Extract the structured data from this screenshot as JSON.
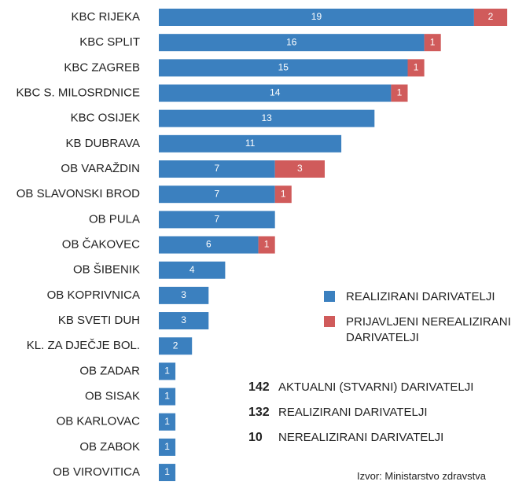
{
  "chart_data": {
    "type": "stacked-bar-horizontal",
    "categories": [
      "KBC RIJEKA",
      "KBC SPLIT",
      "KBC ZAGREB",
      "KBC S. MILOSRDNICE",
      "KBC OSIJEK",
      "KB DUBRAVA",
      "OB VARAŽDIN",
      "OB SLAVONSKI BROD",
      "OB PULA",
      "OB ČAKOVEC",
      "OB ŠIBENIK",
      "OB KOPRIVNICA",
      "KB SVETI DUH",
      "KL. ZA DJEČJE BOL.",
      "OB ZADAR",
      "OB SISAK",
      "OB KARLOVAC",
      "OB ZABOK",
      "OB VIROVITICA"
    ],
    "series": [
      {
        "name": "REALIZIRANI DARIVATELJI",
        "color": "#3b80bf",
        "values": [
          19,
          16,
          15,
          14,
          13,
          11,
          7,
          7,
          7,
          6,
          4,
          3,
          3,
          2,
          1,
          1,
          1,
          1,
          1
        ]
      },
      {
        "name": "PRIJAVLJENI NEREALIZIRANI DARIVATELJI",
        "color": "#d05b5b",
        "values": [
          2,
          1,
          1,
          1,
          null,
          null,
          3,
          1,
          null,
          1,
          null,
          null,
          null,
          null,
          null,
          null,
          null,
          null,
          null
        ]
      }
    ],
    "stats": [
      {
        "value": 142,
        "label": "AKTUALNI (STVARNI) DARIVATELJI"
      },
      {
        "value": 132,
        "label": "REALIZIRANI DARIVATELJI"
      },
      {
        "value": 10,
        "label": "NEREALIZIRANI DARIVATELJI"
      }
    ],
    "source": "Izvor: Ministarstvo zdravstva"
  }
}
